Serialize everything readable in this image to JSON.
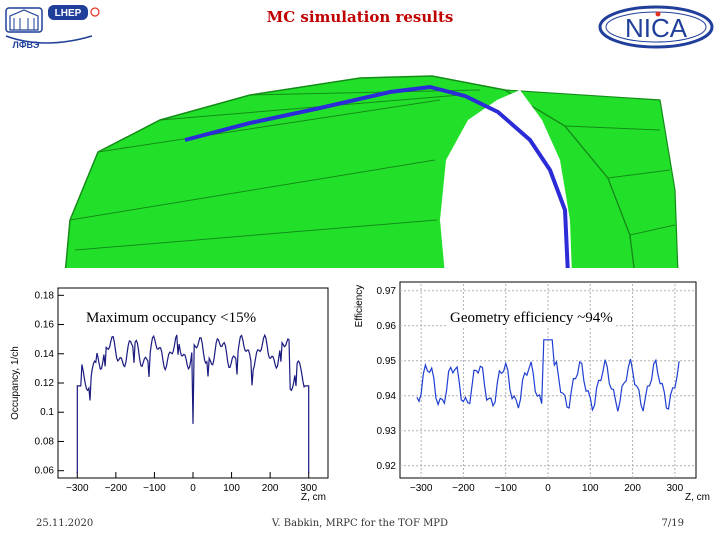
{
  "header": {
    "title": "MC simulation results",
    "left_logo": {
      "lines": [
        "LHEP",
        "ЛФВЭ"
      ],
      "icon": "institute-building-logo"
    },
    "right_logo": {
      "text": "NICA",
      "icon": "nica-ring-logo"
    }
  },
  "detector": {
    "description_icon": "tof-barrel-geometry",
    "colors": {
      "modules": "#22e02a",
      "module_edges": "#148c18",
      "mrpc_strip": "#2b2bd8"
    }
  },
  "plots": {
    "occupancy": {
      "note": "Maximum occupancy <15%",
      "ylabel": "Occupancy, 1/ch",
      "xlabel": "Z, cm",
      "yticks": [
        "0.06",
        "0.08",
        "0.1",
        "0.12",
        "0.14",
        "0.16",
        "0.18"
      ],
      "xticks": [
        "−300",
        "−200",
        "−100",
        "0",
        "100",
        "200",
        "300"
      ],
      "color": "#1a1a80"
    },
    "efficiency": {
      "note": "Geometry efficiency ~94%",
      "ylabel": "Efficiency",
      "xlabel": "Z, cm",
      "yticks": [
        "0.92",
        "0.93",
        "0.94",
        "0.95",
        "0.96",
        "0.97"
      ],
      "xticks": [
        "−300",
        "−200",
        "−100",
        "0",
        "100",
        "200",
        "300"
      ],
      "color": "#1f3fd0"
    }
  },
  "footer": {
    "date": "25.11.2020",
    "author": "V. Babkin, MRPC for the TOF MPD",
    "page": "7/19"
  }
}
